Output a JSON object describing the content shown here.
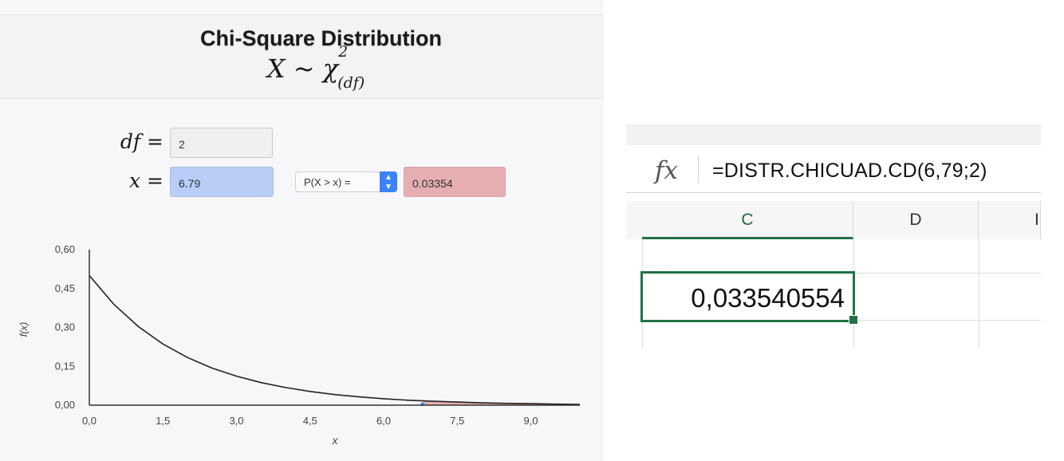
{
  "calculator": {
    "title": "Chi-Square Distribution",
    "formula": {
      "base": "X ~ χ",
      "superscript": "2",
      "subscript": "(df)"
    },
    "df_label": "df =",
    "df_value": "2",
    "x_label": "x =",
    "x_value": "6.79",
    "prob_select": "P(X > x) =",
    "result": "0.03354",
    "colors": {
      "x_field": "#b9cdf7",
      "result_field": "#e6aeb0",
      "select_arrow": "#3b82f6"
    }
  },
  "chart_data": {
    "type": "line",
    "xlabel": "x",
    "ylabel": "f(x)",
    "xlim": [
      0,
      10
    ],
    "ylim": [
      0,
      0.6
    ],
    "x_ticks": [
      "0,0",
      "1,5",
      "3,0",
      "4,5",
      "6,0",
      "7,5",
      "9,0"
    ],
    "x_tick_values": [
      0,
      1.5,
      3,
      4.5,
      6,
      7.5,
      9
    ],
    "y_ticks": [
      "0,00",
      "0,15",
      "0,30",
      "0,45",
      "0,60"
    ],
    "y_tick_values": [
      0,
      0.15,
      0.3,
      0.45,
      0.6
    ],
    "df": 2,
    "shade_from": 6.79,
    "series": [
      {
        "x": [
          0,
          0.5,
          1,
          1.5,
          2,
          2.5,
          3,
          3.5,
          4,
          4.5,
          5,
          5.5,
          6,
          6.5,
          7,
          7.5,
          8,
          8.5,
          9,
          9.5,
          10
        ],
        "y": [
          0.5,
          0.389,
          0.303,
          0.236,
          0.184,
          0.143,
          0.112,
          0.087,
          0.068,
          0.053,
          0.041,
          0.032,
          0.025,
          0.019,
          0.015,
          0.012,
          0.009,
          0.007,
          0.006,
          0.004,
          0.003
        ]
      }
    ]
  },
  "spreadsheet": {
    "fx_icon_text": "fx",
    "formula": "=DISTR.CHICUAD.CD(6,79;2)",
    "columns": [
      "C",
      "D",
      "I"
    ],
    "selected_cell_value": "0,033540554",
    "accent": "#217346"
  }
}
